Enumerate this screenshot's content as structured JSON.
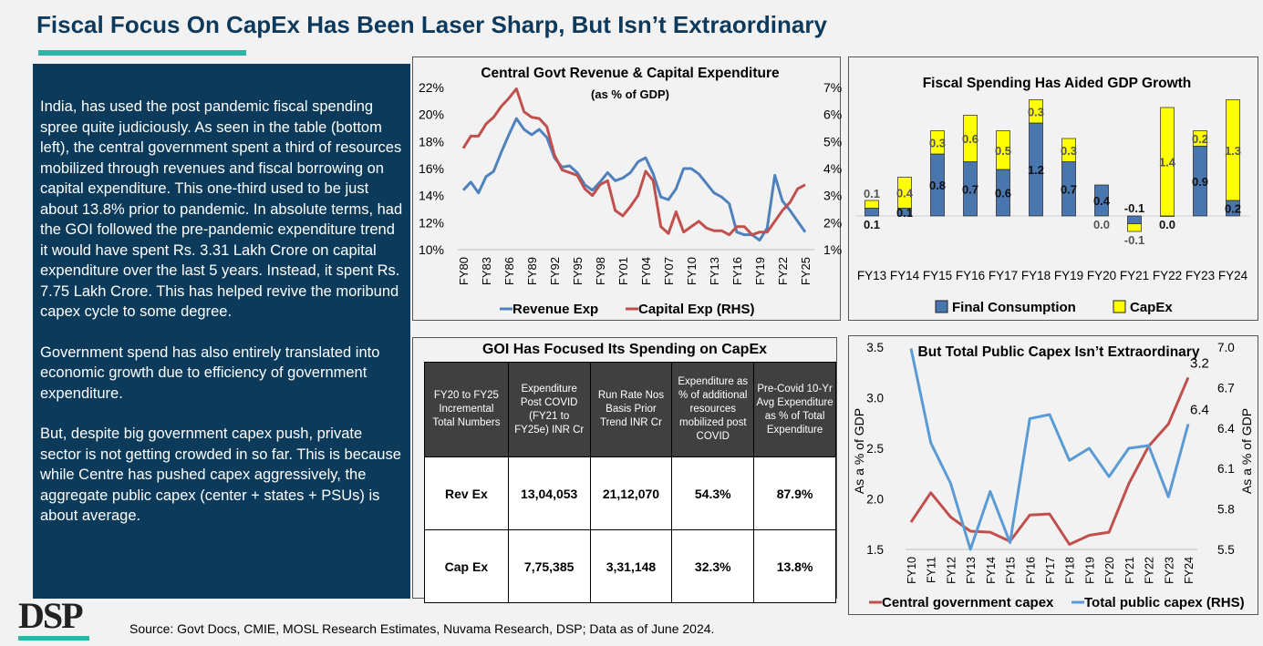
{
  "title": "Fiscal Focus On CapEx Has Been Laser Sharp, But Isn’t Extraordinary",
  "panel": {
    "paragraphs": [
      "India, has used the post pandemic fiscal spending spree quite judiciously. As seen in the table (bottom left), the central government spent a third of resources mobilized through revenues and fiscal borrowing on capital expenditure. This one-third used to be just about 13.8% prior to pandemic. In absolute terms, had the GOI followed the pre-pandemic expenditure trend it would have spent Rs. 3.31 Lakh Crore on capital expenditure over the last 5 years. Instead, it spent Rs. 7.75 Lakh Crore. This has helped revive the moribund capex cycle to some degree.",
      "Government spend has also entirely translated into economic growth due to efficiency of government expenditure.",
      "But, despite big government capex push, private sector is not getting crowded in so far. This is because while Centre has pushed capex aggressively, the aggregate public capex (center + states + PSUs) is about average."
    ]
  },
  "table": {
    "title": "GOI Has Focused Its Spending on CapEx",
    "headers": [
      "FY20 to FY25 Incremental Total Numbers",
      "Expenditure Post COVID (FY21 to FY25e) INR Cr",
      "Run Rate Nos Basis Prior Trend INR Cr",
      "Expenditure as % of additional resources mobilized post COVID",
      "Pre-Covid 10-Yr Avg Expenditure as % of Total Expenditure"
    ],
    "rows": [
      [
        "Rev Ex",
        "13,04,053",
        "21,12,070",
        "54.3%",
        "87.9%"
      ],
      [
        "Cap Ex",
        "7,75,385",
        "3,31,148",
        "32.3%",
        "13.8%"
      ]
    ]
  },
  "logo": "DSP",
  "source": "Source: Govt Docs, CMIE, MOSL Research Estimates, Nuvama Research, DSP; Data as of June 2024.",
  "chart_data": [
    {
      "type": "line",
      "title": "Central Govt Revenue & Capital Expenditure",
      "subtitle": "(as % of GDP)",
      "x": [
        "FY80",
        "FY81",
        "FY82",
        "FY83",
        "FY84",
        "FY85",
        "FY86",
        "FY87",
        "FY88",
        "FY89",
        "FY90",
        "FY91",
        "FY92",
        "FY93",
        "FY94",
        "FY95",
        "FY96",
        "FY97",
        "FY98",
        "FY99",
        "FY00",
        "FY01",
        "FY02",
        "FY03",
        "FY04",
        "FY05",
        "FY06",
        "FY07",
        "FY08",
        "FY09",
        "FY10",
        "FY11",
        "FY12",
        "FY13",
        "FY14",
        "FY15",
        "FY16",
        "FY17",
        "FY18",
        "FY19",
        "FY20",
        "FY21",
        "FY22",
        "FY23",
        "FY24",
        "FY25"
      ],
      "xticks": [
        "FY80",
        "FY83",
        "FY86",
        "FY89",
        "FY92",
        "FY95",
        "FY98",
        "FY01",
        "FY04",
        "FY07",
        "FY10",
        "FY13",
        "FY16",
        "FY19",
        "FY22",
        "FY25"
      ],
      "yticks_left": [
        "22%",
        "20%",
        "18%",
        "16%",
        "14%",
        "12%",
        "10%"
      ],
      "ylim_left": [
        10,
        22
      ],
      "yticks_right": [
        "7%",
        "6%",
        "5%",
        "4%",
        "3%",
        "2%",
        "1%"
      ],
      "ylim_right": [
        1,
        7
      ],
      "series": [
        {
          "name": "Revenue Exp",
          "axis": "left",
          "color": "#4f81bd",
          "values": [
            14.4,
            15.0,
            14.2,
            15.4,
            15.8,
            17.2,
            18.5,
            19.7,
            18.9,
            18.5,
            18.9,
            18.3,
            16.8,
            16.1,
            16.2,
            15.7,
            14.8,
            14.4,
            15.0,
            15.7,
            15.1,
            15.3,
            15.7,
            16.5,
            16.8,
            15.6,
            13.9,
            13.7,
            14.5,
            16.0,
            16.0,
            15.6,
            14.9,
            14.2,
            13.9,
            13.4,
            11.3,
            11.1,
            11.1,
            10.7,
            11.6,
            15.5,
            13.6,
            12.9,
            12.1,
            11.3
          ]
        },
        {
          "name": "Capital Exp (RHS)",
          "axis": "right",
          "color": "#c0504d",
          "values": [
            4.75,
            5.2,
            5.2,
            5.65,
            5.9,
            6.3,
            6.6,
            6.95,
            6.1,
            5.9,
            5.85,
            5.55,
            4.5,
            3.95,
            3.85,
            3.75,
            3.25,
            3.0,
            3.4,
            3.55,
            2.45,
            2.25,
            2.6,
            3.0,
            3.9,
            3.55,
            1.85,
            1.6,
            2.4,
            1.65,
            1.85,
            2.05,
            1.8,
            1.7,
            1.7,
            1.55,
            1.85,
            1.85,
            1.55,
            1.65,
            1.65,
            2.05,
            2.45,
            2.75,
            3.25,
            3.4
          ]
        }
      ],
      "legend": "bottom"
    },
    {
      "type": "bar",
      "stacked": true,
      "title": "Fiscal Spending Has Aided GDP Growth",
      "categories": [
        "FY13",
        "FY14",
        "FY15",
        "FY16",
        "FY17",
        "FY18",
        "FY19",
        "FY20",
        "FY21",
        "FY22",
        "FY23",
        "FY24"
      ],
      "series": [
        {
          "name": "Final Consumption",
          "color": "#4a76b0",
          "values": [
            0.1,
            0.1,
            0.8,
            0.7,
            0.6,
            1.2,
            0.7,
            0.4,
            -0.1,
            0.0,
            0.9,
            0.2
          ],
          "labels": [
            "0.1",
            "0.1",
            "0.8",
            "0.7",
            "0.6",
            "1.2",
            "0.7",
            "0.4",
            "-0.1",
            "0.0",
            "0.9",
            "0.2"
          ]
        },
        {
          "name": "CapEx",
          "color": "#ffff00",
          "values": [
            0.1,
            0.4,
            0.3,
            0.6,
            0.5,
            0.3,
            0.3,
            0.0,
            -0.1,
            1.4,
            0.2,
            1.3
          ],
          "labels": [
            "0.1",
            "0.4",
            "0.3",
            "0.6",
            "0.5",
            "0.3",
            "0.3",
            "0.0",
            "-0.1",
            "1.4",
            "0.2",
            "1.3"
          ]
        }
      ],
      "legend": "bottom"
    },
    {
      "type": "line",
      "title": "But Total Public Capex Isn’t Extraordinary",
      "x": [
        "FY10",
        "FY11",
        "FY12",
        "FY13",
        "FY14",
        "FY15",
        "FY16",
        "FY17",
        "FY18",
        "FY19",
        "FY20",
        "FY21",
        "FY22",
        "FY23",
        "FY24"
      ],
      "ylabel": "As a % of GDP",
      "ylabel_right": "As a % of GDP",
      "yticks_left": [
        "3.5",
        "3.0",
        "2.5",
        "2.0",
        "1.5"
      ],
      "ylim_left": [
        1.5,
        3.5
      ],
      "yticks_right": [
        "7.0",
        "6.7",
        "6.4",
        "6.1",
        "5.8",
        "5.5"
      ],
      "ylim_right": [
        5.5,
        7.0
      ],
      "series": [
        {
          "name": "Central government capex",
          "axis": "left",
          "color": "#c0504d",
          "values": [
            1.77,
            2.06,
            1.82,
            1.68,
            1.67,
            1.58,
            1.84,
            1.85,
            1.55,
            1.64,
            1.67,
            2.15,
            2.52,
            2.74,
            3.2
          ],
          "end_label": "3.2"
        },
        {
          "name": "Total public capex (RHS)",
          "axis": "right",
          "color": "#5b9bd5",
          "values": [
            6.99,
            6.29,
            5.99,
            5.5,
            5.93,
            5.55,
            6.47,
            6.5,
            6.16,
            6.25,
            6.04,
            6.25,
            6.27,
            5.89,
            6.43
          ],
          "end_label": "6.4"
        }
      ],
      "legend": "bottom"
    }
  ]
}
